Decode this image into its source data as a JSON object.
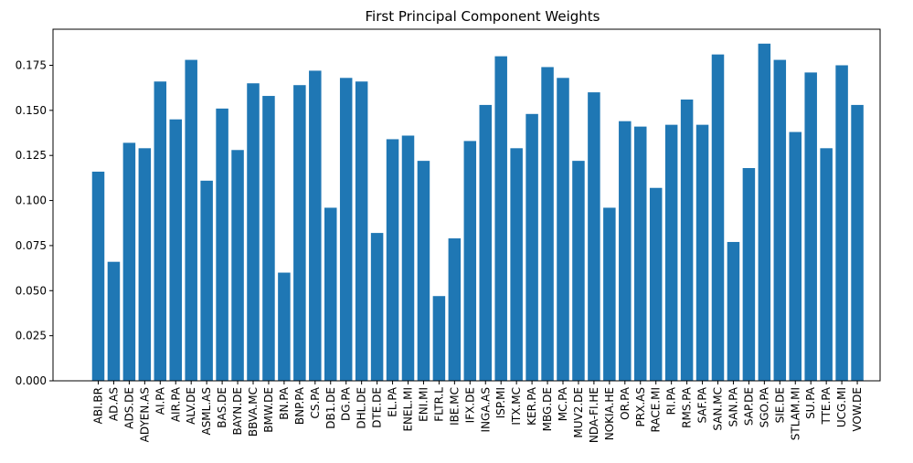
{
  "chart_data": {
    "type": "bar",
    "title": "First Principal Component Weights",
    "xlabel": "",
    "ylabel": "",
    "ylim": [
      0,
      0.195
    ],
    "yticks": [
      "0.000",
      "0.025",
      "0.050",
      "0.075",
      "0.100",
      "0.125",
      "0.150",
      "0.175"
    ],
    "grid": false,
    "color": "#1f77b4",
    "categories": [
      "ABI.BR",
      "AD.AS",
      "ADS.DE",
      "ADYEN.AS",
      "AI.PA",
      "AIR.PA",
      "ALV.DE",
      "ASML.AS",
      "BAS.DE",
      "BAYN.DE",
      "BBVA.MC",
      "BMW.DE",
      "BN.PA",
      "BNP.PA",
      "CS.PA",
      "DB1.DE",
      "DG.PA",
      "DHL.DE",
      "DTE.DE",
      "EL.PA",
      "ENEL.MI",
      "ENI.MI",
      "FLTR.L",
      "IBE.MC",
      "IFX.DE",
      "INGA.AS",
      "ISP.MI",
      "ITX.MC",
      "KER.PA",
      "MBG.DE",
      "MC.PA",
      "MUV2.DE",
      "NDA-FI.HE",
      "NOKIA.HE",
      "OR.PA",
      "PRX.AS",
      "RACE.MI",
      "RI.PA",
      "RMS.PA",
      "SAF.PA",
      "SAN.MC",
      "SAN.PA",
      "SAP.DE",
      "SGO.PA",
      "SIE.DE",
      "STLAM.MI",
      "SU.PA",
      "TTE.PA",
      "UCG.MI",
      "VOW.DE"
    ],
    "values": [
      0.116,
      0.066,
      0.132,
      0.129,
      0.166,
      0.145,
      0.178,
      0.111,
      0.151,
      0.128,
      0.165,
      0.158,
      0.06,
      0.164,
      0.172,
      0.096,
      0.168,
      0.166,
      0.082,
      0.134,
      0.136,
      0.122,
      0.047,
      0.079,
      0.133,
      0.153,
      0.18,
      0.129,
      0.148,
      0.174,
      0.168,
      0.122,
      0.16,
      0.096,
      0.144,
      0.141,
      0.107,
      0.142,
      0.156,
      0.142,
      0.181,
      0.077,
      0.118,
      0.187,
      0.178,
      0.138,
      0.171,
      0.129,
      0.175,
      0.153
    ]
  }
}
